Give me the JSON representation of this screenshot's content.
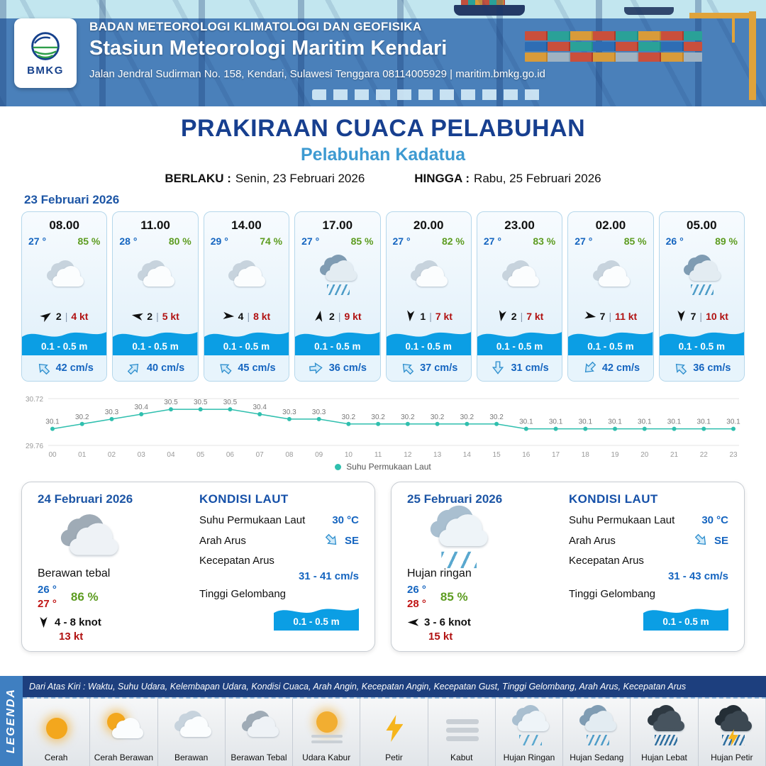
{
  "colors": {
    "accent_blue": "#1c55a5",
    "title_blue": "#173f8f",
    "port_blue": "#3d9ad1",
    "value_blue": "#1565c0",
    "humidity_green": "#5d9c21",
    "gust_red": "#b11212",
    "wave_blue": "#0b9ee4",
    "sst_line_teal": "#2fbfae",
    "header_blue": "#4a80ba",
    "legend_bar_blue": "#1d3f7e",
    "legend_strip_blue": "#3f7fc1"
  },
  "header": {
    "logo_text": "BMKG",
    "agency": "BADAN METEOROLOGI KLIMATOLOGI DAN GEOFISIKA",
    "station": "Stasiun Meteorologi Maritim Kendari",
    "address": "Jalan Jendral Sudirman No. 158, Kendari, Sulawesi Tenggara  08114005929 | maritim.bmkg.go.id"
  },
  "title": {
    "main": "PRAKIRAAN CUACA PELABUHAN",
    "port": "Pelabuhan Kadatua",
    "valid_label": "BERLAKU :",
    "valid_value": "Senin, 23 Februari 2026",
    "until_label": "HINGGA :",
    "until_value": "Rabu, 25 Februari 2026"
  },
  "forecast": {
    "date": "23 Februari 2026",
    "cards": [
      {
        "time": "08.00",
        "temp": "27 °",
        "rh": "85 %",
        "icon": "berawan",
        "wind_speed": "2",
        "gust": "4 kt",
        "wind_dir": -35,
        "wave": "0.1 - 0.5 m",
        "current": "42 cm/s",
        "current_dir": -135
      },
      {
        "time": "11.00",
        "temp": "28 °",
        "rh": "80 %",
        "icon": "berawan",
        "wind_speed": "2",
        "gust": "5 kt",
        "wind_dir": 190,
        "wave": "0.1 - 0.5 m",
        "current": "40 cm/s",
        "current_dir": -45
      },
      {
        "time": "14.00",
        "temp": "29 °",
        "rh": "74 %",
        "icon": "berawan",
        "wind_speed": "4",
        "gust": "8 kt",
        "wind_dir": 5,
        "wave": "0.1 - 0.5 m",
        "current": "45 cm/s",
        "current_dir": -140
      },
      {
        "time": "17.00",
        "temp": "27 °",
        "rh": "85 %",
        "icon": "hujan-sedang",
        "wind_speed": "2",
        "gust": "9 kt",
        "wind_dir": -80,
        "wave": "0.1 - 0.5 m",
        "current": "36 cm/s",
        "current_dir": -5
      },
      {
        "time": "20.00",
        "temp": "27 °",
        "rh": "82 %",
        "icon": "berawan",
        "wind_speed": "1",
        "gust": "7 kt",
        "wind_dir": 95,
        "wave": "0.1 - 0.5 m",
        "current": "37 cm/s",
        "current_dir": -135
      },
      {
        "time": "23.00",
        "temp": "27 °",
        "rh": "83 %",
        "icon": "berawan",
        "wind_speed": "2",
        "gust": "7 kt",
        "wind_dir": 100,
        "wave": "0.1 - 0.5 m",
        "current": "31 cm/s",
        "current_dir": 90
      },
      {
        "time": "02.00",
        "temp": "27 °",
        "rh": "85 %",
        "icon": "berawan",
        "wind_speed": "7",
        "gust": "11 kt",
        "wind_dir": 10,
        "wave": "0.1 - 0.5 m",
        "current": "42 cm/s",
        "current_dir": 135
      },
      {
        "time": "05.00",
        "temp": "26 °",
        "rh": "89 %",
        "icon": "hujan-sedang",
        "wind_speed": "7",
        "gust": "10 kt",
        "wind_dir": 90,
        "wave": "0.1 - 0.5 m",
        "current": "36 cm/s",
        "current_dir": -135
      }
    ]
  },
  "chart_data": {
    "type": "line",
    "title": "",
    "xlabel": "",
    "ylabel": "",
    "x": [
      "00",
      "01",
      "02",
      "03",
      "04",
      "05",
      "06",
      "07",
      "08",
      "09",
      "10",
      "11",
      "12",
      "13",
      "14",
      "15",
      "16",
      "17",
      "18",
      "19",
      "20",
      "21",
      "22",
      "23"
    ],
    "series": [
      {
        "name": "Suhu Permukaan Laut",
        "values": [
          30.1,
          30.2,
          30.3,
          30.4,
          30.5,
          30.5,
          30.5,
          30.4,
          30.3,
          30.3,
          30.2,
          30.2,
          30.2,
          30.2,
          30.2,
          30.2,
          30.1,
          30.1,
          30.1,
          30.1,
          30.1,
          30.1,
          30.1,
          30.1
        ]
      }
    ],
    "ylim": [
      29.76,
      30.72
    ],
    "line_color": "#2fbfae",
    "grid": true,
    "legend_position": "bottom"
  },
  "days": [
    {
      "date": "24 Februari 2026",
      "icon": "berawan-tebal",
      "condition": "Berawan tebal",
      "temp_min": "26 °",
      "temp_max": "27 °",
      "rh": "86 %",
      "wind": "4 - 8 knot",
      "wind_dir": 90,
      "gust": "13 kt",
      "sea": {
        "heading": "KONDISI LAUT",
        "sst_label": "Suhu Permukaan Laut",
        "sst": "30 °C",
        "current_dir_label": "Arah Arus",
        "current_dir": "SE",
        "current_dir_deg": 45,
        "current_speed_label": "Kecepatan Arus",
        "current_speed": "31 - 41 cm/s",
        "wave_label": "Tinggi Gelombang",
        "wave": "0.1 - 0.5 m"
      }
    },
    {
      "date": "25 Februari 2026",
      "icon": "hujan-ringan",
      "condition": "Hujan ringan",
      "temp_min": "26 °",
      "temp_max": "28 °",
      "rh": "85 %",
      "wind": "3 - 6 knot",
      "wind_dir": 180,
      "gust": "15 kt",
      "sea": {
        "heading": "KONDISI LAUT",
        "sst_label": "Suhu Permukaan Laut",
        "sst": "30 °C",
        "current_dir_label": "Arah Arus",
        "current_dir": "SE",
        "current_dir_deg": 45,
        "current_speed_label": "Kecepatan Arus",
        "current_speed": "31 - 43 cm/s",
        "wave_label": "Tinggi Gelombang",
        "wave": "0.1 - 0.5 m"
      }
    }
  ],
  "legend": {
    "title": "LEGENDA",
    "note": "Dari Atas Kiri : Waktu, Suhu Udara, Kelembapan Udara, Kondisi Cuaca, Arah Angin, Kecepatan Angin, Kecepatan Gust, Tinggi Gelombang, Arah Arus, Kecepatan Arus",
    "items": [
      {
        "label": "Cerah",
        "icon": "cerah"
      },
      {
        "label": "Cerah Berawan",
        "icon": "cerah-berawan"
      },
      {
        "label": "Berawan",
        "icon": "berawan"
      },
      {
        "label": "Berawan Tebal",
        "icon": "berawan-tebal"
      },
      {
        "label": "Udara Kabur",
        "icon": "udara-kabur"
      },
      {
        "label": "Petir",
        "icon": "petir"
      },
      {
        "label": "Kabut",
        "icon": "kabut"
      },
      {
        "label": "Hujan Ringan",
        "icon": "hujan-ringan"
      },
      {
        "label": "Hujan Sedang",
        "icon": "hujan-sedang"
      },
      {
        "label": "Hujan Lebat",
        "icon": "hujan-lebat"
      },
      {
        "label": "Hujan Petir",
        "icon": "hujan-petir"
      }
    ]
  }
}
